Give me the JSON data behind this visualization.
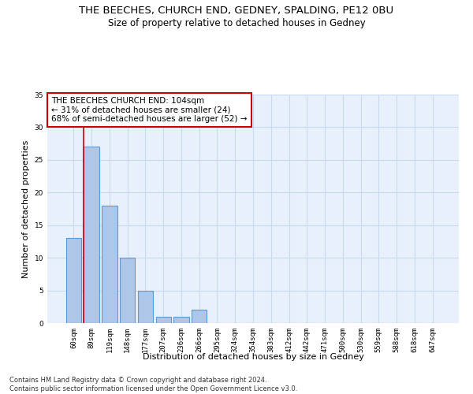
{
  "title": "THE BEECHES, CHURCH END, GEDNEY, SPALDING, PE12 0BU",
  "subtitle": "Size of property relative to detached houses in Gedney",
  "xlabel": "Distribution of detached houses by size in Gedney",
  "ylabel": "Number of detached properties",
  "footer_line1": "Contains HM Land Registry data © Crown copyright and database right 2024.",
  "footer_line2": "Contains public sector information licensed under the Open Government Licence v3.0.",
  "categories": [
    "60sqm",
    "89sqm",
    "119sqm",
    "148sqm",
    "177sqm",
    "207sqm",
    "236sqm",
    "266sqm",
    "295sqm",
    "324sqm",
    "354sqm",
    "383sqm",
    "412sqm",
    "442sqm",
    "471sqm",
    "500sqm",
    "530sqm",
    "559sqm",
    "588sqm",
    "618sqm",
    "647sqm"
  ],
  "values": [
    13,
    27,
    18,
    10,
    5,
    1,
    1,
    2,
    0,
    0,
    0,
    0,
    0,
    0,
    0,
    0,
    0,
    0,
    0,
    0,
    0
  ],
  "bar_color": "#aec6e8",
  "bar_edge_color": "#5b9bd5",
  "grid_color": "#c8daf0",
  "background_color": "#e8f0fb",
  "annotation_text": "THE BEECHES CHURCH END: 104sqm\n← 31% of detached houses are smaller (24)\n68% of semi-detached houses are larger (52) →",
  "annotation_box_color": "#ffffff",
  "annotation_box_edge_color": "#cc0000",
  "reference_line_color": "#cc0000",
  "ylim": [
    0,
    35
  ],
  "yticks": [
    0,
    5,
    10,
    15,
    20,
    25,
    30,
    35
  ],
  "title_fontsize": 9.5,
  "subtitle_fontsize": 8.5,
  "ylabel_fontsize": 8,
  "xlabel_fontsize": 8,
  "tick_fontsize": 6.5,
  "annotation_fontsize": 7.5,
  "footer_fontsize": 6
}
